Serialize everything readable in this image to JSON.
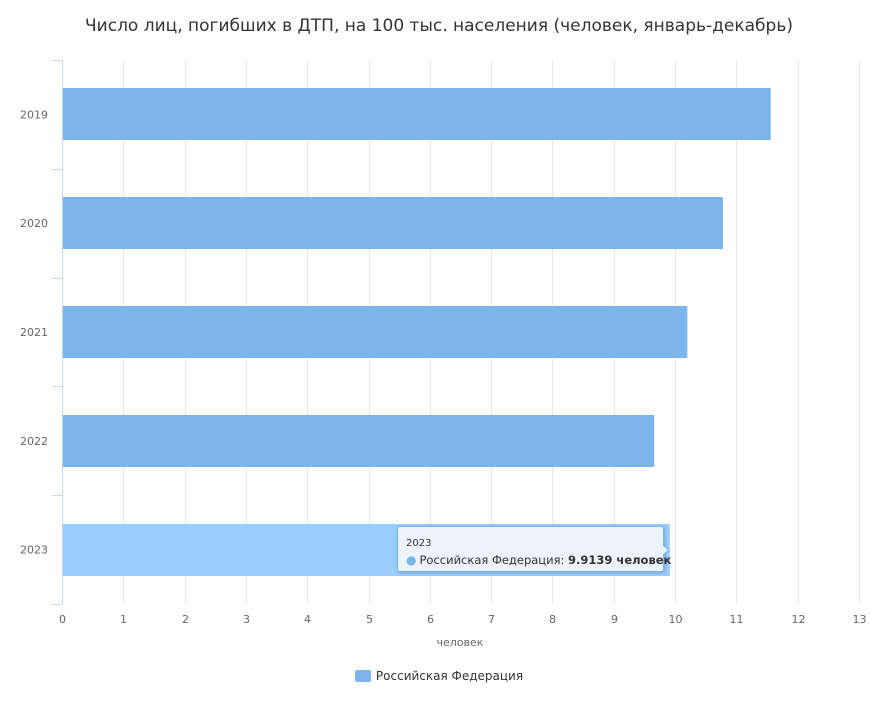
{
  "chart_data": {
    "type": "bar",
    "orientation": "horizontal",
    "title": "Число лиц, погибших в ДТП, на 100 тыс. населения (человек, январь-декабрь)",
    "xlabel": "человек",
    "ylabel": "",
    "categories": [
      "2019",
      "2020",
      "2021",
      "2022",
      "2023"
    ],
    "series": [
      {
        "name": "Российская Федерация",
        "color": "#7cb5ec",
        "values": [
          11.56,
          10.78,
          10.2,
          9.66,
          9.9139
        ]
      }
    ],
    "xlim": [
      0,
      13
    ],
    "xticks": [
      "0",
      "1",
      "2",
      "3",
      "4",
      "5",
      "6",
      "7",
      "8",
      "9",
      "10",
      "11",
      "12",
      "13"
    ],
    "grid": true,
    "legend": "bottom-center",
    "highlighted_color": "#99ccff",
    "highlighted_category": "2023"
  },
  "tooltip": {
    "category": "2023",
    "series_label": "Российская Федерация:",
    "value_text": "9.9139 человек"
  },
  "legend": {
    "label": "Российская Федерация"
  }
}
